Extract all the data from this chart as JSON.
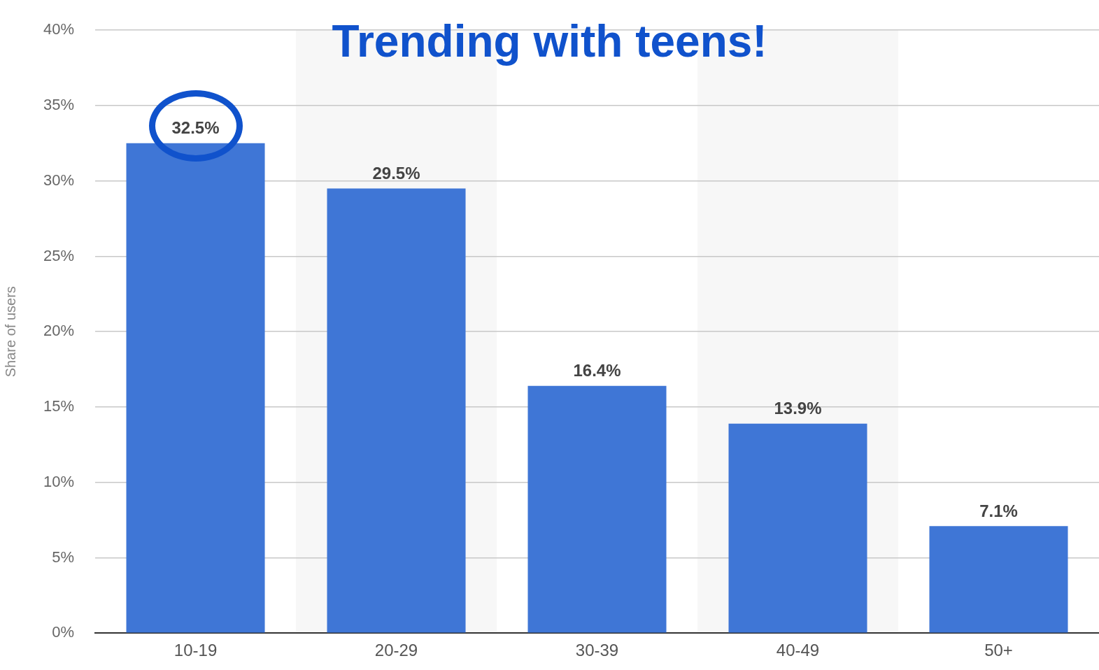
{
  "chart_data": {
    "type": "bar",
    "title": "Trending with teens!",
    "ylabel": "Share of users",
    "categories": [
      "10-19",
      "20-29",
      "30-39",
      "40-49",
      "50+"
    ],
    "values": [
      32.5,
      29.5,
      16.4,
      13.9,
      7.1
    ],
    "value_labels": [
      "32.5%",
      "29.5%",
      "16.4%",
      "13.9%",
      "7.1%"
    ],
    "color": "#3f76d6",
    "ylim": [
      0,
      40
    ],
    "yticks": [
      {
        "value": 0,
        "label": "0%"
      },
      {
        "value": 5,
        "label": "5%"
      },
      {
        "value": 10,
        "label": "10%"
      },
      {
        "value": 15,
        "label": "15%"
      },
      {
        "value": 20,
        "label": "20%"
      },
      {
        "value": 25,
        "label": "25%"
      },
      {
        "value": 30,
        "label": "30%"
      },
      {
        "value": 35,
        "label": "35%"
      },
      {
        "value": 40,
        "label": "40%"
      }
    ],
    "grid": "y",
    "legend": false
  }
}
